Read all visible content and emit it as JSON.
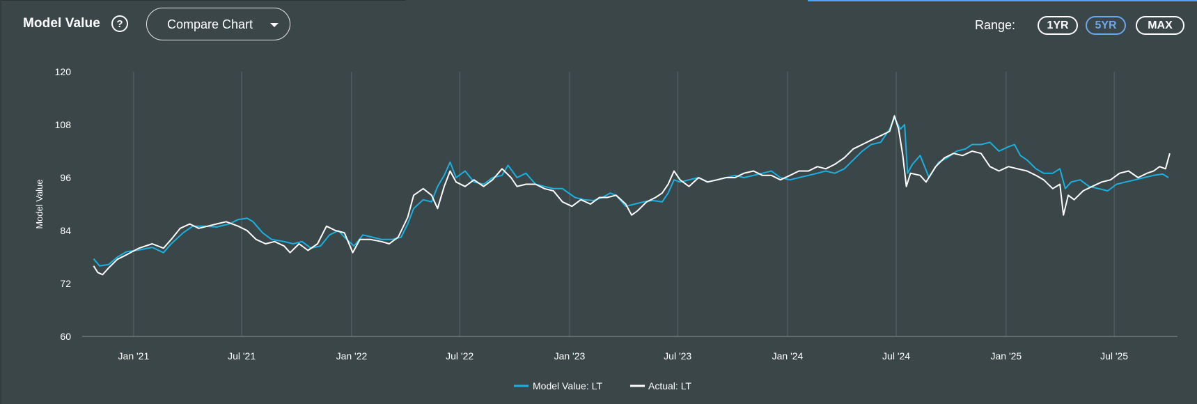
{
  "header": {
    "title": "Model Value",
    "help_icon": "?",
    "compare_label": "Compare Chart",
    "range_label": "Range:",
    "ranges": [
      "1YR",
      "5YR",
      "MAX"
    ],
    "active_range": "5YR"
  },
  "colors": {
    "background": "#3b4649",
    "model_series": "#1ab0e0",
    "actual_series": "#ffffff",
    "active_range": "#6aa8ee"
  },
  "chart_data": {
    "type": "line",
    "title": "",
    "xlabel": "",
    "ylabel": "Model Value",
    "ylim": [
      60,
      120
    ],
    "yticks": [
      60,
      72,
      84,
      96,
      108,
      120
    ],
    "xlim": [
      "2020-10-15",
      "2025-10-15"
    ],
    "xticks": [
      {
        "date": "2021-01-01",
        "label": "Jan '21"
      },
      {
        "date": "2021-07-01",
        "label": "Jul '21"
      },
      {
        "date": "2022-01-01",
        "label": "Jan '22"
      },
      {
        "date": "2022-07-01",
        "label": "Jul '22"
      },
      {
        "date": "2023-01-01",
        "label": "Jan '23"
      },
      {
        "date": "2023-07-01",
        "label": "Jul '23"
      },
      {
        "date": "2024-01-01",
        "label": "Jan '24"
      },
      {
        "date": "2024-07-01",
        "label": "Jul '24"
      },
      {
        "date": "2025-01-01",
        "label": "Jan '25"
      },
      {
        "date": "2025-07-01",
        "label": "Jul '25"
      }
    ],
    "grid": "vertical",
    "legend_position": "bottom-center",
    "series": [
      {
        "name": "Model Value: LT",
        "points": [
          [
            "2020-10-26",
            77.6
          ],
          [
            "2020-11-05",
            76.0
          ],
          [
            "2020-11-20",
            76.3
          ],
          [
            "2020-12-05",
            78.0
          ],
          [
            "2020-12-20",
            79.2
          ],
          [
            "2021-01-10",
            79.6
          ],
          [
            "2021-02-01",
            80.2
          ],
          [
            "2021-02-20",
            79.0
          ],
          [
            "2021-03-05",
            81.0
          ],
          [
            "2021-03-25",
            83.5
          ],
          [
            "2021-04-10",
            85.0
          ],
          [
            "2021-05-01",
            85.0
          ],
          [
            "2021-05-20",
            84.8
          ],
          [
            "2021-06-10",
            85.5
          ],
          [
            "2021-06-25",
            86.5
          ],
          [
            "2021-07-10",
            86.8
          ],
          [
            "2021-07-20",
            86.0
          ],
          [
            "2021-08-05",
            83.5
          ],
          [
            "2021-08-20",
            82.0
          ],
          [
            "2021-09-10",
            81.5
          ],
          [
            "2021-09-25",
            81.0
          ],
          [
            "2021-10-10",
            81.5
          ],
          [
            "2021-10-25",
            80.0
          ],
          [
            "2021-11-10",
            80.5
          ],
          [
            "2021-11-25",
            83.0
          ],
          [
            "2021-12-10",
            84.0
          ],
          [
            "2021-12-20",
            82.5
          ],
          [
            "2022-01-05",
            80.5
          ],
          [
            "2022-01-20",
            83.0
          ],
          [
            "2022-02-05",
            82.5
          ],
          [
            "2022-02-20",
            82.0
          ],
          [
            "2022-03-10",
            82.0
          ],
          [
            "2022-03-25",
            82.5
          ],
          [
            "2022-04-05",
            85.5
          ],
          [
            "2022-04-15",
            89.0
          ],
          [
            "2022-05-01",
            91.0
          ],
          [
            "2022-05-15",
            90.5
          ],
          [
            "2022-05-25",
            94.0
          ],
          [
            "2022-06-05",
            96.5
          ],
          [
            "2022-06-15",
            99.5
          ],
          [
            "2022-06-25",
            96.0
          ],
          [
            "2022-07-10",
            97.5
          ],
          [
            "2022-07-25",
            95.0
          ],
          [
            "2022-08-10",
            94.5
          ],
          [
            "2022-08-25",
            96.0
          ],
          [
            "2022-09-10",
            96.5
          ],
          [
            "2022-09-20",
            98.8
          ],
          [
            "2022-10-05",
            96.0
          ],
          [
            "2022-10-20",
            97.0
          ],
          [
            "2022-11-05",
            94.5
          ],
          [
            "2022-11-20",
            94.0
          ],
          [
            "2022-12-05",
            93.5
          ],
          [
            "2022-12-20",
            93.5
          ],
          [
            "2023-01-10",
            91.5
          ],
          [
            "2023-01-25",
            91.0
          ],
          [
            "2023-02-10",
            90.8
          ],
          [
            "2023-02-25",
            91.5
          ],
          [
            "2023-03-10",
            92.5
          ],
          [
            "2023-03-20",
            92.0
          ],
          [
            "2023-04-05",
            89.5
          ],
          [
            "2023-04-20",
            90.0
          ],
          [
            "2023-05-05",
            90.5
          ],
          [
            "2023-05-20",
            90.8
          ],
          [
            "2023-06-05",
            90.5
          ],
          [
            "2023-06-15",
            92.5
          ],
          [
            "2023-06-25",
            95.5
          ],
          [
            "2023-07-05",
            95.0
          ],
          [
            "2023-07-20",
            95.5
          ],
          [
            "2023-08-05",
            96.0
          ],
          [
            "2023-08-20",
            95.0
          ],
          [
            "2023-09-05",
            95.5
          ],
          [
            "2023-09-20",
            96.0
          ],
          [
            "2023-10-05",
            96.5
          ],
          [
            "2023-10-20",
            96.0
          ],
          [
            "2023-11-05",
            96.5
          ],
          [
            "2023-11-20",
            97.0
          ],
          [
            "2023-12-05",
            97.5
          ],
          [
            "2023-12-20",
            96.0
          ],
          [
            "2024-01-05",
            95.5
          ],
          [
            "2024-01-20",
            96.0
          ],
          [
            "2024-02-05",
            96.5
          ],
          [
            "2024-02-20",
            97.0
          ],
          [
            "2024-03-05",
            97.5
          ],
          [
            "2024-03-20",
            97.0
          ],
          [
            "2024-04-05",
            98.0
          ],
          [
            "2024-04-20",
            100.0
          ],
          [
            "2024-05-05",
            102.0
          ],
          [
            "2024-05-20",
            103.5
          ],
          [
            "2024-06-05",
            104.0
          ],
          [
            "2024-06-20",
            107.0
          ],
          [
            "2024-06-28",
            109.5
          ],
          [
            "2024-07-08",
            107.0
          ],
          [
            "2024-07-15",
            108.0
          ],
          [
            "2024-07-20",
            97.0
          ],
          [
            "2024-07-28",
            99.0
          ],
          [
            "2024-08-10",
            101.0
          ],
          [
            "2024-08-25",
            96.0
          ],
          [
            "2024-09-10",
            99.5
          ],
          [
            "2024-09-25",
            100.5
          ],
          [
            "2024-10-10",
            102.0
          ],
          [
            "2024-10-25",
            102.5
          ],
          [
            "2024-11-05",
            103.5
          ],
          [
            "2024-11-20",
            103.5
          ],
          [
            "2024-12-05",
            104.0
          ],
          [
            "2024-12-20",
            102.0
          ],
          [
            "2025-01-05",
            103.0
          ],
          [
            "2025-01-15",
            103.5
          ],
          [
            "2025-01-25",
            101.0
          ],
          [
            "2025-02-05",
            100.0
          ],
          [
            "2025-02-20",
            98.0
          ],
          [
            "2025-03-05",
            97.0
          ],
          [
            "2025-03-20",
            97.0
          ],
          [
            "2025-04-01",
            98.0
          ],
          [
            "2025-04-10",
            93.5
          ],
          [
            "2025-04-20",
            95.0
          ],
          [
            "2025-05-05",
            95.5
          ],
          [
            "2025-05-20",
            94.0
          ],
          [
            "2025-06-05",
            93.5
          ],
          [
            "2025-06-20",
            93.0
          ],
          [
            "2025-07-05",
            94.5
          ],
          [
            "2025-07-20",
            95.0
          ],
          [
            "2025-08-05",
            95.5
          ],
          [
            "2025-08-20",
            96.0
          ],
          [
            "2025-09-05",
            96.5
          ],
          [
            "2025-09-20",
            96.8
          ],
          [
            "2025-09-30",
            96.0
          ]
        ]
      },
      {
        "name": "Actual: LT",
        "points": [
          [
            "2020-10-26",
            76.0
          ],
          [
            "2020-11-02",
            74.5
          ],
          [
            "2020-11-10",
            74.0
          ],
          [
            "2020-11-20",
            75.5
          ],
          [
            "2020-12-05",
            77.5
          ],
          [
            "2020-12-20",
            78.5
          ],
          [
            "2021-01-10",
            80.0
          ],
          [
            "2021-02-01",
            81.0
          ],
          [
            "2021-02-20",
            80.0
          ],
          [
            "2021-03-05",
            82.0
          ],
          [
            "2021-03-20",
            84.5
          ],
          [
            "2021-04-05",
            85.5
          ],
          [
            "2021-04-20",
            84.5
          ],
          [
            "2021-05-05",
            85.0
          ],
          [
            "2021-05-20",
            85.5
          ],
          [
            "2021-06-05",
            86.0
          ],
          [
            "2021-06-25",
            85.0
          ],
          [
            "2021-07-10",
            84.0
          ],
          [
            "2021-07-25",
            82.0
          ],
          [
            "2021-08-10",
            81.0
          ],
          [
            "2021-08-25",
            81.5
          ],
          [
            "2021-09-10",
            80.5
          ],
          [
            "2021-09-20",
            79.0
          ],
          [
            "2021-10-05",
            81.0
          ],
          [
            "2021-10-20",
            79.5
          ],
          [
            "2021-11-05",
            81.0
          ],
          [
            "2021-11-20",
            85.0
          ],
          [
            "2021-12-05",
            84.0
          ],
          [
            "2021-12-20",
            83.5
          ],
          [
            "2022-01-03",
            79.0
          ],
          [
            "2022-01-15",
            82.0
          ],
          [
            "2022-02-01",
            82.0
          ],
          [
            "2022-02-20",
            81.5
          ],
          [
            "2022-03-05",
            81.0
          ],
          [
            "2022-03-20",
            82.5
          ],
          [
            "2022-04-05",
            87.0
          ],
          [
            "2022-04-15",
            92.0
          ],
          [
            "2022-05-01",
            93.5
          ],
          [
            "2022-05-15",
            92.0
          ],
          [
            "2022-05-25",
            89.0
          ],
          [
            "2022-06-05",
            94.0
          ],
          [
            "2022-06-15",
            97.5
          ],
          [
            "2022-06-25",
            95.0
          ],
          [
            "2022-07-10",
            94.0
          ],
          [
            "2022-07-25",
            95.5
          ],
          [
            "2022-08-10",
            94.0
          ],
          [
            "2022-08-25",
            95.5
          ],
          [
            "2022-09-10",
            98.0
          ],
          [
            "2022-09-25",
            96.0
          ],
          [
            "2022-10-05",
            94.0
          ],
          [
            "2022-10-20",
            94.5
          ],
          [
            "2022-11-05",
            94.5
          ],
          [
            "2022-11-20",
            93.5
          ],
          [
            "2022-12-05",
            93.0
          ],
          [
            "2022-12-20",
            90.5
          ],
          [
            "2023-01-05",
            89.5
          ],
          [
            "2023-01-20",
            91.0
          ],
          [
            "2023-02-05",
            90.0
          ],
          [
            "2023-02-20",
            91.5
          ],
          [
            "2023-03-05",
            91.5
          ],
          [
            "2023-03-20",
            92.0
          ],
          [
            "2023-04-05",
            90.0
          ],
          [
            "2023-04-15",
            87.5
          ],
          [
            "2023-04-25",
            88.5
          ],
          [
            "2023-05-10",
            90.5
          ],
          [
            "2023-05-25",
            91.5
          ],
          [
            "2023-06-05",
            92.5
          ],
          [
            "2023-06-15",
            94.5
          ],
          [
            "2023-06-25",
            97.5
          ],
          [
            "2023-07-05",
            95.5
          ],
          [
            "2023-07-20",
            94.0
          ],
          [
            "2023-08-05",
            96.0
          ],
          [
            "2023-08-20",
            95.0
          ],
          [
            "2023-09-05",
            95.5
          ],
          [
            "2023-09-20",
            96.0
          ],
          [
            "2023-10-05",
            96.0
          ],
          [
            "2023-10-20",
            97.0
          ],
          [
            "2023-11-05",
            97.5
          ],
          [
            "2023-11-20",
            96.5
          ],
          [
            "2023-12-05",
            96.5
          ],
          [
            "2023-12-20",
            95.5
          ],
          [
            "2024-01-05",
            96.5
          ],
          [
            "2024-01-20",
            97.5
          ],
          [
            "2024-02-05",
            97.5
          ],
          [
            "2024-02-20",
            98.5
          ],
          [
            "2024-03-05",
            98.0
          ],
          [
            "2024-03-20",
            99.0
          ],
          [
            "2024-04-05",
            100.5
          ],
          [
            "2024-04-20",
            102.5
          ],
          [
            "2024-05-05",
            103.5
          ],
          [
            "2024-05-20",
            104.5
          ],
          [
            "2024-06-05",
            105.5
          ],
          [
            "2024-06-20",
            106.5
          ],
          [
            "2024-06-28",
            110.0
          ],
          [
            "2024-07-05",
            107.0
          ],
          [
            "2024-07-12",
            101.0
          ],
          [
            "2024-07-18",
            94.0
          ],
          [
            "2024-07-25",
            97.0
          ],
          [
            "2024-08-10",
            96.5
          ],
          [
            "2024-08-20",
            95.0
          ],
          [
            "2024-09-05",
            98.5
          ],
          [
            "2024-09-20",
            100.5
          ],
          [
            "2024-10-05",
            101.5
          ],
          [
            "2024-10-20",
            101.0
          ],
          [
            "2024-11-05",
            102.0
          ],
          [
            "2024-11-20",
            101.5
          ],
          [
            "2024-12-05",
            98.5
          ],
          [
            "2024-12-20",
            97.5
          ],
          [
            "2025-01-05",
            98.5
          ],
          [
            "2025-01-20",
            98.0
          ],
          [
            "2025-02-05",
            97.5
          ],
          [
            "2025-02-20",
            96.5
          ],
          [
            "2025-03-05",
            95.5
          ],
          [
            "2025-03-20",
            93.5
          ],
          [
            "2025-04-01",
            94.5
          ],
          [
            "2025-04-07",
            87.5
          ],
          [
            "2025-04-15",
            92.0
          ],
          [
            "2025-04-25",
            91.0
          ],
          [
            "2025-05-10",
            93.0
          ],
          [
            "2025-05-25",
            94.0
          ],
          [
            "2025-06-10",
            95.0
          ],
          [
            "2025-06-25",
            95.5
          ],
          [
            "2025-07-10",
            97.0
          ],
          [
            "2025-07-25",
            97.5
          ],
          [
            "2025-08-10",
            96.0
          ],
          [
            "2025-08-25",
            97.0
          ],
          [
            "2025-09-05",
            97.5
          ],
          [
            "2025-09-15",
            98.5
          ],
          [
            "2025-09-25",
            98.0
          ],
          [
            "2025-10-02",
            101.5
          ]
        ]
      }
    ]
  }
}
